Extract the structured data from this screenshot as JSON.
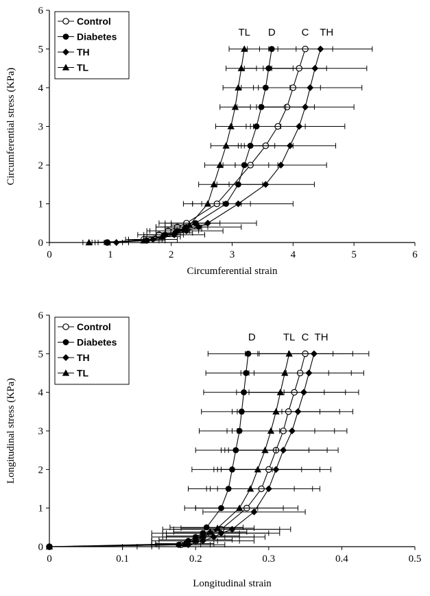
{
  "chart_data": [
    {
      "type": "line",
      "xlabel": "Circumferential strain",
      "ylabel": "Circumferential stress (KPa)",
      "xlim": [
        0,
        6
      ],
      "ylim": [
        0,
        6
      ],
      "xticks": [
        "0",
        "1",
        "2",
        "3",
        "4",
        "5",
        "6"
      ],
      "yticks": [
        "0",
        "1",
        "2",
        "3",
        "4",
        "5",
        "6"
      ],
      "legend_position": "top-left",
      "curve_labels": [
        {
          "text": "TL",
          "x": 3.2,
          "y": 5.27
        },
        {
          "text": "D",
          "x": 3.65,
          "y": 5.27
        },
        {
          "text": "C",
          "x": 4.2,
          "y": 5.27
        },
        {
          "text": "TH",
          "x": 4.55,
          "y": 5.27
        }
      ],
      "series": [
        {
          "name": "Control",
          "marker": "circle-open",
          "points": [
            {
              "x": 0.95,
              "y": 0,
              "xerr": 0.25
            },
            {
              "x": 1.55,
              "y": 0.08,
              "xerr": 0.3
            },
            {
              "x": 1.8,
              "y": 0.2,
              "xerr": 0.35
            },
            {
              "x": 1.95,
              "y": 0.3,
              "xerr": 0.35
            },
            {
              "x": 2.1,
              "y": 0.4,
              "xerr": 0.35
            },
            {
              "x": 2.25,
              "y": 0.5,
              "xerr": 0.35
            },
            {
              "x": 2.75,
              "y": 1.0,
              "xerr": 0.4
            },
            {
              "x": 3.3,
              "y": 2.0,
              "xerr": 0.45
            },
            {
              "x": 3.55,
              "y": 2.5,
              "xerr": 0.45
            },
            {
              "x": 3.75,
              "y": 3.0,
              "xerr": 0.45
            },
            {
              "x": 3.9,
              "y": 3.5,
              "xerr": 0.45
            },
            {
              "x": 4.0,
              "y": 4.0,
              "xerr": 0.45
            },
            {
              "x": 4.1,
              "y": 4.5,
              "xerr": 0.45
            },
            {
              "x": 4.2,
              "y": 5.0,
              "xerr": 0.45
            }
          ]
        },
        {
          "name": "Diabetes",
          "marker": "circle-filled",
          "points": [
            {
              "x": 0.95,
              "y": 0,
              "xerr": 0.15
            },
            {
              "x": 1.6,
              "y": 0.05,
              "xerr": 0.3
            },
            {
              "x": 1.9,
              "y": 0.2,
              "xerr": 0.3
            },
            {
              "x": 2.1,
              "y": 0.3,
              "xerr": 0.35
            },
            {
              "x": 2.25,
              "y": 0.4,
              "xerr": 0.35
            },
            {
              "x": 2.4,
              "y": 0.5,
              "xerr": 0.4
            },
            {
              "x": 2.9,
              "y": 1.0,
              "xerr": 0.4
            },
            {
              "x": 3.1,
              "y": 1.5,
              "xerr": 0.4
            },
            {
              "x": 3.2,
              "y": 2.0,
              "xerr": 0.4
            },
            {
              "x": 3.3,
              "y": 2.5,
              "xerr": 0.4
            },
            {
              "x": 3.4,
              "y": 3.0,
              "xerr": 0.4
            },
            {
              "x": 3.48,
              "y": 3.5,
              "xerr": 0.4
            },
            {
              "x": 3.55,
              "y": 4.0,
              "xerr": 0.4
            },
            {
              "x": 3.6,
              "y": 4.5,
              "xerr": 0.4
            },
            {
              "x": 3.65,
              "y": 5.0,
              "xerr": 0.4
            }
          ]
        },
        {
          "name": "TH",
          "marker": "diamond-filled",
          "points": [
            {
              "x": 1.1,
              "y": 0,
              "xerr": 0.2
            },
            {
              "x": 1.7,
              "y": 0.08,
              "xerr": 0.4
            },
            {
              "x": 2.05,
              "y": 0.2,
              "xerr": 0.5
            },
            {
              "x": 2.25,
              "y": 0.3,
              "xerr": 0.6
            },
            {
              "x": 2.45,
              "y": 0.4,
              "xerr": 0.7
            },
            {
              "x": 2.6,
              "y": 0.5,
              "xerr": 0.8
            },
            {
              "x": 3.1,
              "y": 1.0,
              "xerr": 0.9
            },
            {
              "x": 3.55,
              "y": 1.5,
              "xerr": 0.8
            },
            {
              "x": 3.8,
              "y": 2.0,
              "xerr": 0.75
            },
            {
              "x": 3.95,
              "y": 2.5,
              "xerr": 0.75
            },
            {
              "x": 4.1,
              "y": 3.0,
              "xerr": 0.75
            },
            {
              "x": 4.2,
              "y": 3.5,
              "xerr": 0.8
            },
            {
              "x": 4.28,
              "y": 4.0,
              "xerr": 0.85
            },
            {
              "x": 4.36,
              "y": 4.5,
              "xerr": 0.85
            },
            {
              "x": 4.45,
              "y": 5.0,
              "xerr": 0.85
            }
          ]
        },
        {
          "name": "TL",
          "marker": "triangle-filled",
          "points": [
            {
              "x": 0.65,
              "y": 0,
              "xerr": 0.1
            },
            {
              "x": 1.55,
              "y": 0.05,
              "xerr": 0.25
            },
            {
              "x": 1.85,
              "y": 0.15,
              "xerr": 0.3
            },
            {
              "x": 2.05,
              "y": 0.25,
              "xerr": 0.3
            },
            {
              "x": 2.2,
              "y": 0.35,
              "xerr": 0.3
            },
            {
              "x": 2.3,
              "y": 0.45,
              "xerr": 0.3
            },
            {
              "x": 2.6,
              "y": 1.0,
              "xerr": 0.25
            },
            {
              "x": 2.7,
              "y": 1.5,
              "xerr": 0.25
            },
            {
              "x": 2.8,
              "y": 2.0,
              "xerr": 0.25
            },
            {
              "x": 2.9,
              "y": 2.5,
              "xerr": 0.25
            },
            {
              "x": 2.98,
              "y": 3.0,
              "xerr": 0.25
            },
            {
              "x": 3.05,
              "y": 3.5,
              "xerr": 0.25
            },
            {
              "x": 3.1,
              "y": 4.0,
              "xerr": 0.25
            },
            {
              "x": 3.15,
              "y": 4.5,
              "xerr": 0.25
            },
            {
              "x": 3.2,
              "y": 5.0,
              "xerr": 0.25
            }
          ]
        }
      ]
    },
    {
      "type": "line",
      "xlabel": "Longitudinal strain",
      "ylabel": "Longitudinal stress (KPa)",
      "xlim": [
        0,
        0.5
      ],
      "ylim": [
        0,
        6
      ],
      "xticks": [
        "0",
        "0.1",
        "0.2",
        "0.3",
        "0.4",
        "0.5"
      ],
      "yticks": [
        "0",
        "1",
        "2",
        "3",
        "4",
        "5",
        "6"
      ],
      "legend_position": "top-left",
      "curve_labels": [
        {
          "text": "D",
          "x": 0.277,
          "y": 5.27
        },
        {
          "text": "TL",
          "x": 0.328,
          "y": 5.27
        },
        {
          "text": "C",
          "x": 0.35,
          "y": 5.27
        },
        {
          "text": "TH",
          "x": 0.372,
          "y": 5.27
        }
      ],
      "series": [
        {
          "name": "Control",
          "marker": "circle-open",
          "points": [
            {
              "x": 0,
              "y": 0,
              "xerr": 0.12
            },
            {
              "x": 0.18,
              "y": 0.05,
              "xerr": 0.04
            },
            {
              "x": 0.2,
              "y": 0.15,
              "xerr": 0.06
            },
            {
              "x": 0.21,
              "y": 0.25,
              "xerr": 0.07
            },
            {
              "x": 0.22,
              "y": 0.35,
              "xerr": 0.08
            },
            {
              "x": 0.235,
              "y": 0.45,
              "xerr": 0.08
            },
            {
              "x": 0.27,
              "y": 1.0,
              "xerr": 0.07
            },
            {
              "x": 0.29,
              "y": 1.5,
              "xerr": 0.07
            },
            {
              "x": 0.3,
              "y": 2.0,
              "xerr": 0.07
            },
            {
              "x": 0.31,
              "y": 2.5,
              "xerr": 0.07
            },
            {
              "x": 0.32,
              "y": 3.0,
              "xerr": 0.07
            },
            {
              "x": 0.327,
              "y": 3.5,
              "xerr": 0.07
            },
            {
              "x": 0.335,
              "y": 4.0,
              "xerr": 0.07
            },
            {
              "x": 0.343,
              "y": 4.5,
              "xerr": 0.07
            },
            {
              "x": 0.35,
              "y": 5.0,
              "xerr": 0.065
            }
          ]
        },
        {
          "name": "Diabetes",
          "marker": "circle-filled",
          "points": [
            {
              "x": 0,
              "y": 0,
              "xerr": 0.1
            },
            {
              "x": 0.177,
              "y": 0.05,
              "xerr": 0.03
            },
            {
              "x": 0.19,
              "y": 0.15,
              "xerr": 0.04
            },
            {
              "x": 0.2,
              "y": 0.25,
              "xerr": 0.04
            },
            {
              "x": 0.21,
              "y": 0.35,
              "xerr": 0.05
            },
            {
              "x": 0.215,
              "y": 0.5,
              "xerr": 0.05
            },
            {
              "x": 0.235,
              "y": 1.0,
              "xerr": 0.05
            },
            {
              "x": 0.245,
              "y": 1.5,
              "xerr": 0.055
            },
            {
              "x": 0.25,
              "y": 2.0,
              "xerr": 0.055
            },
            {
              "x": 0.255,
              "y": 2.5,
              "xerr": 0.055
            },
            {
              "x": 0.26,
              "y": 3.0,
              "xerr": 0.055
            },
            {
              "x": 0.263,
              "y": 3.5,
              "xerr": 0.055
            },
            {
              "x": 0.266,
              "y": 4.0,
              "xerr": 0.055
            },
            {
              "x": 0.269,
              "y": 4.5,
              "xerr": 0.055
            },
            {
              "x": 0.272,
              "y": 5.0,
              "xerr": 0.055
            }
          ]
        },
        {
          "name": "TH",
          "marker": "diamond-filled",
          "points": [
            {
              "x": 0,
              "y": 0,
              "xerr": 0.15
            },
            {
              "x": 0.19,
              "y": 0.05,
              "xerr": 0.05
            },
            {
              "x": 0.21,
              "y": 0.15,
              "xerr": 0.07
            },
            {
              "x": 0.225,
              "y": 0.25,
              "xerr": 0.07
            },
            {
              "x": 0.235,
              "y": 0.35,
              "xerr": 0.08
            },
            {
              "x": 0.25,
              "y": 0.45,
              "xerr": 0.08
            },
            {
              "x": 0.28,
              "y": 0.9,
              "xerr": 0.07
            },
            {
              "x": 0.3,
              "y": 1.5,
              "xerr": 0.07
            },
            {
              "x": 0.31,
              "y": 2.0,
              "xerr": 0.075
            },
            {
              "x": 0.32,
              "y": 2.5,
              "xerr": 0.075
            },
            {
              "x": 0.332,
              "y": 3.0,
              "xerr": 0.075
            },
            {
              "x": 0.34,
              "y": 3.5,
              "xerr": 0.075
            },
            {
              "x": 0.348,
              "y": 4.0,
              "xerr": 0.075
            },
            {
              "x": 0.355,
              "y": 4.5,
              "xerr": 0.075
            },
            {
              "x": 0.362,
              "y": 5.0,
              "xerr": 0.075
            }
          ]
        },
        {
          "name": "TL",
          "marker": "triangle-filled",
          "points": [
            {
              "x": 0,
              "y": 0,
              "xerr": 0.14
            },
            {
              "x": 0.185,
              "y": 0.08,
              "xerr": 0.04
            },
            {
              "x": 0.2,
              "y": 0.18,
              "xerr": 0.05
            },
            {
              "x": 0.21,
              "y": 0.28,
              "xerr": 0.05
            },
            {
              "x": 0.22,
              "y": 0.38,
              "xerr": 0.05
            },
            {
              "x": 0.23,
              "y": 0.48,
              "xerr": 0.05
            },
            {
              "x": 0.26,
              "y": 1.0,
              "xerr": 0.06
            },
            {
              "x": 0.275,
              "y": 1.5,
              "xerr": 0.06
            },
            {
              "x": 0.285,
              "y": 2.0,
              "xerr": 0.06
            },
            {
              "x": 0.295,
              "y": 2.5,
              "xerr": 0.06
            },
            {
              "x": 0.303,
              "y": 3.0,
              "xerr": 0.06
            },
            {
              "x": 0.31,
              "y": 3.5,
              "xerr": 0.06
            },
            {
              "x": 0.316,
              "y": 4.0,
              "xerr": 0.06
            },
            {
              "x": 0.322,
              "y": 4.5,
              "xerr": 0.06
            },
            {
              "x": 0.328,
              "y": 5.0,
              "xerr": 0.06
            }
          ]
        }
      ]
    }
  ]
}
